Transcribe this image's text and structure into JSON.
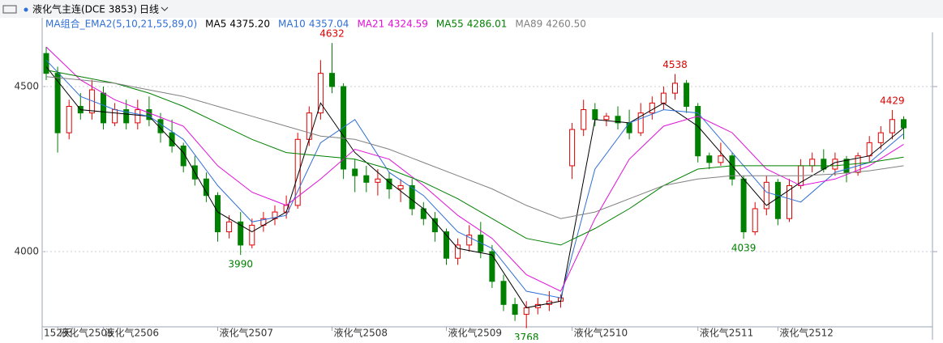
{
  "header": {
    "symbol": "液化气主连(DCE 3853)",
    "period": "日线"
  },
  "chart_data": {
    "type": "candlestick",
    "indicator": "MA组合_EMA2(5,10,21,55,89,0)",
    "day_count": "152天",
    "up_color": "#e00000",
    "down_color": "#008000",
    "ylim": [
      3760,
      4670
    ],
    "yticks": [
      4000,
      4500
    ],
    "grid": true,
    "categories": [
      null,
      "液化气2505",
      null,
      null,
      null,
      "液化气2506",
      null,
      null,
      null,
      null,
      null,
      null,
      null,
      null,
      null,
      "液化气2507",
      null,
      null,
      null,
      null,
      null,
      null,
      null,
      null,
      null,
      "液化气2508",
      null,
      null,
      null,
      null,
      null,
      null,
      null,
      null,
      null,
      "液化气2509",
      null,
      null,
      null,
      null,
      null,
      null,
      null,
      null,
      null,
      null,
      "液化气2510",
      null,
      null,
      null,
      null,
      null,
      null,
      null,
      null,
      null,
      null,
      "液化气2511",
      null,
      null,
      null,
      null,
      null,
      null,
      "液化气2512",
      null,
      null,
      null,
      null,
      null,
      null,
      null,
      null,
      null,
      null,
      null
    ],
    "candles": [
      [
        4600,
        4620,
        4520,
        4540
      ],
      [
        4540,
        4560,
        4300,
        4360
      ],
      [
        4360,
        4460,
        4340,
        4440
      ],
      [
        4440,
        4480,
        4400,
        4420
      ],
      [
        4420,
        4520,
        4400,
        4490
      ],
      [
        4480,
        4500,
        4370,
        4390
      ],
      [
        4390,
        4450,
        4380,
        4430
      ],
      [
        4430,
        4460,
        4370,
        4390
      ],
      [
        4390,
        4460,
        4370,
        4430
      ],
      [
        4430,
        4470,
        4380,
        4400
      ],
      [
        4400,
        4420,
        4330,
        4360
      ],
      [
        4360,
        4400,
        4300,
        4320
      ],
      [
        4320,
        4330,
        4240,
        4260
      ],
      [
        4260,
        4290,
        4200,
        4220
      ],
      [
        4220,
        4240,
        4150,
        4170
      ],
      [
        4170,
        4180,
        4030,
        4060
      ],
      [
        4060,
        4110,
        4040,
        4090
      ],
      [
        4090,
        4120,
        3990,
        4020
      ],
      [
        4020,
        4100,
        4010,
        4080
      ],
      [
        4080,
        4120,
        4060,
        4100
      ],
      [
        4100,
        4140,
        4080,
        4120
      ],
      [
        4120,
        4170,
        4100,
        4140
      ],
      [
        4140,
        4360,
        4130,
        4340
      ],
      [
        4340,
        4440,
        4320,
        4420
      ],
      [
        4420,
        4580,
        4400,
        4540
      ],
      [
        4540,
        4632,
        4480,
        4500
      ],
      [
        4500,
        4510,
        4220,
        4250
      ],
      [
        4250,
        4280,
        4180,
        4230
      ],
      [
        4230,
        4260,
        4180,
        4210
      ],
      [
        4210,
        4250,
        4170,
        4220
      ],
      [
        4220,
        4240,
        4160,
        4190
      ],
      [
        4190,
        4220,
        4150,
        4200
      ],
      [
        4200,
        4220,
        4110,
        4130
      ],
      [
        4130,
        4150,
        4080,
        4100
      ],
      [
        4100,
        4120,
        4030,
        4060
      ],
      [
        4060,
        4070,
        3960,
        3980
      ],
      [
        3980,
        4040,
        3960,
        4020
      ],
      [
        4020,
        4080,
        4000,
        4050
      ],
      [
        4050,
        4090,
        3980,
        4000
      ],
      [
        4000,
        4020,
        3890,
        3910
      ],
      [
        3910,
        3930,
        3820,
        3840
      ],
      [
        3840,
        3860,
        3790,
        3810
      ],
      [
        3810,
        3850,
        3768,
        3830
      ],
      [
        3830,
        3860,
        3810,
        3840
      ],
      [
        3840,
        3880,
        3820,
        3850
      ],
      [
        3850,
        3870,
        3830,
        3860
      ],
      [
        4260,
        4390,
        4220,
        4370
      ],
      [
        4370,
        4460,
        4350,
        4430
      ],
      [
        4430,
        4450,
        4380,
        4400
      ],
      [
        4400,
        4420,
        4380,
        4410
      ],
      [
        4410,
        4440,
        4370,
        4390
      ],
      [
        4390,
        4430,
        4340,
        4360
      ],
      [
        4360,
        4450,
        4350,
        4420
      ],
      [
        4420,
        4470,
        4400,
        4450
      ],
      [
        4450,
        4500,
        4430,
        4480
      ],
      [
        4480,
        4538,
        4460,
        4510
      ],
      [
        4510,
        4520,
        4420,
        4440
      ],
      [
        4440,
        4450,
        4270,
        4290
      ],
      [
        4290,
        4300,
        4250,
        4270
      ],
      [
        4270,
        4330,
        4260,
        4290
      ],
      [
        4290,
        4300,
        4200,
        4220
      ],
      [
        4220,
        4230,
        4039,
        4060
      ],
      [
        4060,
        4150,
        4050,
        4130
      ],
      [
        4130,
        4230,
        4110,
        4210
      ],
      [
        4210,
        4220,
        4080,
        4100
      ],
      [
        4100,
        4220,
        4090,
        4200
      ],
      [
        4200,
        4280,
        4190,
        4260
      ],
      [
        4260,
        4300,
        4240,
        4280
      ],
      [
        4280,
        4310,
        4240,
        4250
      ],
      [
        4250,
        4300,
        4230,
        4280
      ],
      [
        4280,
        4290,
        4210,
        4240
      ],
      [
        4240,
        4300,
        4230,
        4290
      ],
      [
        4290,
        4350,
        4270,
        4330
      ],
      [
        4330,
        4380,
        4310,
        4360
      ],
      [
        4360,
        4429,
        4340,
        4400
      ],
      [
        4400,
        4410,
        4340,
        4375
      ]
    ],
    "extremes": [
      {
        "index": 25,
        "value": 4632,
        "color": "#e00000"
      },
      {
        "index": 17,
        "value": 3990,
        "color": "#008000"
      },
      {
        "index": 42,
        "value": 3768,
        "color": "#008000"
      },
      {
        "index": 55,
        "value": 4538,
        "color": "#e00000"
      },
      {
        "index": 61,
        "value": 4039,
        "color": "#008000"
      },
      {
        "index": 74,
        "value": 4429,
        "color": "#e00000"
      }
    ],
    "series": [
      {
        "name": "MA5",
        "color": "#000000",
        "last": {
          "value": 4375.2,
          "label": "4375.20"
        },
        "x": [
          0,
          3,
          6,
          9,
          12,
          15,
          18,
          21,
          24,
          27,
          30,
          33,
          36,
          39,
          42,
          45,
          48,
          51,
          54,
          57,
          60,
          63,
          66,
          69,
          72,
          75
        ],
        "values": [
          4560,
          4430,
          4420,
          4410,
          4300,
          4120,
          4060,
          4120,
          4450,
          4300,
          4210,
          4130,
          4010,
          3990,
          3830,
          3850,
          4400,
          4390,
          4450,
          4380,
          4260,
          4140,
          4210,
          4270,
          4290,
          4375
        ]
      },
      {
        "name": "MA10",
        "color": "#2f6fd6",
        "last": {
          "value": 4357.04,
          "label": "4357.04"
        },
        "x": [
          0,
          3,
          6,
          9,
          12,
          15,
          18,
          21,
          24,
          27,
          30,
          33,
          36,
          39,
          42,
          45,
          48,
          51,
          54,
          57,
          60,
          63,
          66,
          69,
          72,
          75
        ],
        "values": [
          4580,
          4470,
          4430,
          4410,
          4340,
          4200,
          4090,
          4110,
          4330,
          4400,
          4240,
          4170,
          4060,
          4010,
          3880,
          3860,
          4250,
          4390,
          4430,
          4420,
          4300,
          4180,
          4150,
          4240,
          4270,
          4357
        ]
      },
      {
        "name": "MA21",
        "color": "#e010d8",
        "last": {
          "value": 4324.59,
          "label": "4324.59"
        },
        "x": [
          0,
          3,
          6,
          9,
          12,
          15,
          18,
          21,
          24,
          27,
          30,
          33,
          36,
          39,
          42,
          45,
          48,
          51,
          54,
          57,
          60,
          63,
          66,
          69,
          72,
          75
        ],
        "values": [
          4620,
          4520,
          4460,
          4420,
          4380,
          4260,
          4180,
          4140,
          4220,
          4310,
          4280,
          4200,
          4110,
          4040,
          3930,
          3880,
          4100,
          4280,
          4380,
          4410,
          4360,
          4250,
          4200,
          4220,
          4260,
          4325
        ]
      },
      {
        "name": "MA55",
        "color": "#008000",
        "last": {
          "value": 4286.01,
          "label": "4286.01"
        },
        "x": [
          0,
          3,
          6,
          9,
          12,
          15,
          18,
          21,
          24,
          27,
          30,
          33,
          36,
          39,
          42,
          45,
          48,
          51,
          54,
          57,
          60,
          63,
          66,
          69,
          72,
          75
        ],
        "values": [
          4550,
          4530,
          4510,
          4480,
          4440,
          4390,
          4340,
          4300,
          4290,
          4280,
          4250,
          4210,
          4160,
          4100,
          4040,
          4020,
          4070,
          4130,
          4200,
          4250,
          4260,
          4260,
          4260,
          4260,
          4270,
          4286
        ]
      },
      {
        "name": "MA89",
        "color": "#808080",
        "last": {
          "value": 4260.5,
          "label": "4260.50"
        },
        "x": [
          0,
          3,
          6,
          9,
          12,
          15,
          18,
          21,
          24,
          27,
          30,
          33,
          36,
          39,
          42,
          45,
          48,
          51,
          54,
          57,
          60,
          63,
          66,
          69,
          72,
          75
        ],
        "values": [
          4530,
          4520,
          4510,
          4490,
          4470,
          4440,
          4410,
          4380,
          4350,
          4340,
          4310,
          4270,
          4230,
          4190,
          4140,
          4100,
          4120,
          4160,
          4200,
          4220,
          4230,
          4230,
          4230,
          4235,
          4245,
          4260
        ]
      }
    ]
  }
}
